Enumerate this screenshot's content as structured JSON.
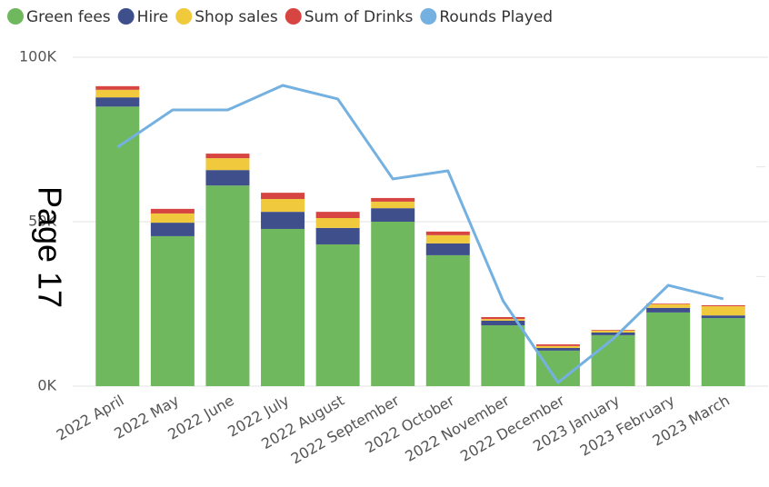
{
  "chart_data": {
    "type": "bar",
    "categories": [
      "2022 April",
      "2022 May",
      "2022 June",
      "2022 July",
      "2022 August",
      "2022 September",
      "2022 October",
      "2022 November",
      "2022 December",
      "2023 January",
      "2023 February",
      "2023 March"
    ],
    "series": [
      {
        "name": "Green fees",
        "color": "#70b85e",
        "values": [
          85,
          45.6,
          61,
          47.8,
          43.1,
          50,
          39.8,
          18.5,
          10.8,
          15.5,
          22.4,
          20.7
        ]
      },
      {
        "name": "Hire",
        "color": "#3f4f8c",
        "values": [
          2.8,
          4.1,
          4.7,
          5.2,
          5,
          4.1,
          3.6,
          1.4,
          0.8,
          0.8,
          1.4,
          0.8
        ]
      },
      {
        "name": "Shop sales",
        "color": "#f0c93c",
        "values": [
          2.3,
          2.8,
          3.6,
          3.9,
          3,
          2,
          2.5,
          0.5,
          0.6,
          0.6,
          1.1,
          2.8
        ]
      },
      {
        "name": "Sum of Drinks",
        "color": "#d64541",
        "values": [
          1.1,
          1.4,
          1.4,
          1.9,
          1.9,
          1.1,
          1.1,
          0.6,
          0.5,
          0.2,
          0.2,
          0.3
        ]
      },
      {
        "name": "Rounds Played",
        "color": "#74b1e0",
        "type": "line",
        "axis": "y2",
        "values": [
          2180,
          2519,
          2519,
          2743,
          2619,
          1890,
          1964,
          779,
          33,
          431,
          920,
          796
        ]
      }
    ],
    "ylim": [
      0,
      100
    ],
    "yticks": [
      {
        "value": 0,
        "label": "0K"
      },
      {
        "value": 50,
        "label": "50K"
      },
      {
        "value": 100,
        "label": "100K"
      }
    ],
    "y2lim": [
      0,
      3000
    ],
    "y2ticks": [
      1000,
      2000
    ],
    "grid": true,
    "legend": "top",
    "annotation": "Page 17"
  }
}
